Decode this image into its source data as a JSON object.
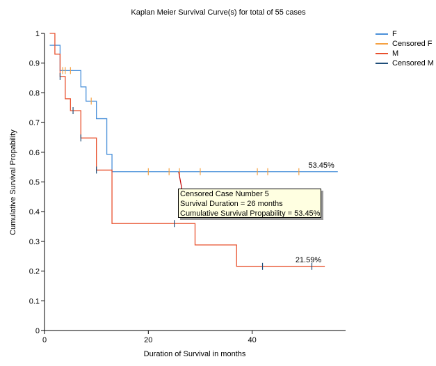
{
  "chart_data": {
    "type": "line",
    "step": true,
    "title": "Kaplan Meier Survival Curve(s) for total of 55 cases",
    "xlabel": "Duration of Survival in months",
    "ylabel": "Cumulative Survival Propability",
    "xlim": [
      0,
      58
    ],
    "ylim": [
      0,
      1
    ],
    "x_ticks": [
      0,
      20,
      40
    ],
    "y_ticks": [
      0,
      0.1,
      0.2,
      0.3,
      0.4,
      0.5,
      0.6,
      0.7,
      0.8,
      0.9,
      1
    ],
    "y_tick_labels": [
      "0",
      "0.1",
      "0.2",
      "0.3",
      "0.4",
      "0.5",
      "0.6",
      "0.7",
      "0.8",
      "0.9",
      "1"
    ],
    "series": [
      {
        "name": "F",
        "color": "#4a90d9",
        "censor_color": "#f5a142",
        "x": [
          1,
          3,
          7,
          8,
          10,
          12,
          13,
          56.5
        ],
        "y": [
          0.96,
          0.875,
          0.82,
          0.772,
          0.713,
          0.593,
          0.5345,
          0.5345
        ],
        "censored_x": [
          3.5,
          4,
          5,
          9,
          20,
          24,
          26,
          30,
          41,
          43,
          49
        ],
        "censored_y": [
          0.875,
          0.875,
          0.875,
          0.772,
          0.5345,
          0.5345,
          0.5345,
          0.5345,
          0.5345,
          0.5345,
          0.5345
        ],
        "end_label": "53.45%"
      },
      {
        "name": "M",
        "color": "#e8502d",
        "censor_color": "#1f4e79",
        "x": [
          1,
          2,
          3,
          4,
          5,
          7,
          10,
          13,
          25,
          29,
          37,
          54
        ],
        "y": [
          1.0,
          0.93,
          0.855,
          0.78,
          0.74,
          0.648,
          0.54,
          0.36,
          0.36,
          0.288,
          0.2159,
          0.2159
        ],
        "censored_x": [
          3,
          5.5,
          7,
          10,
          25,
          42,
          51.5
        ],
        "censored_y": [
          0.855,
          0.74,
          0.648,
          0.54,
          0.36,
          0.2159,
          0.2159
        ],
        "end_label": "21.59%"
      }
    ],
    "legend": [
      "F",
      "Censored F",
      "M",
      "Censored M"
    ],
    "legend_colors": [
      "#4a90d9",
      "#f5a142",
      "#e8502d",
      "#1f4e79"
    ],
    "legend_position": "top-right",
    "tooltip": {
      "lines": [
        "Censored Case Number 5",
        "Survival Duration = 26 months",
        "Cumulative Survival Propability = 53.45%"
      ],
      "anchor_x": 26,
      "anchor_y": 0.5345
    }
  }
}
